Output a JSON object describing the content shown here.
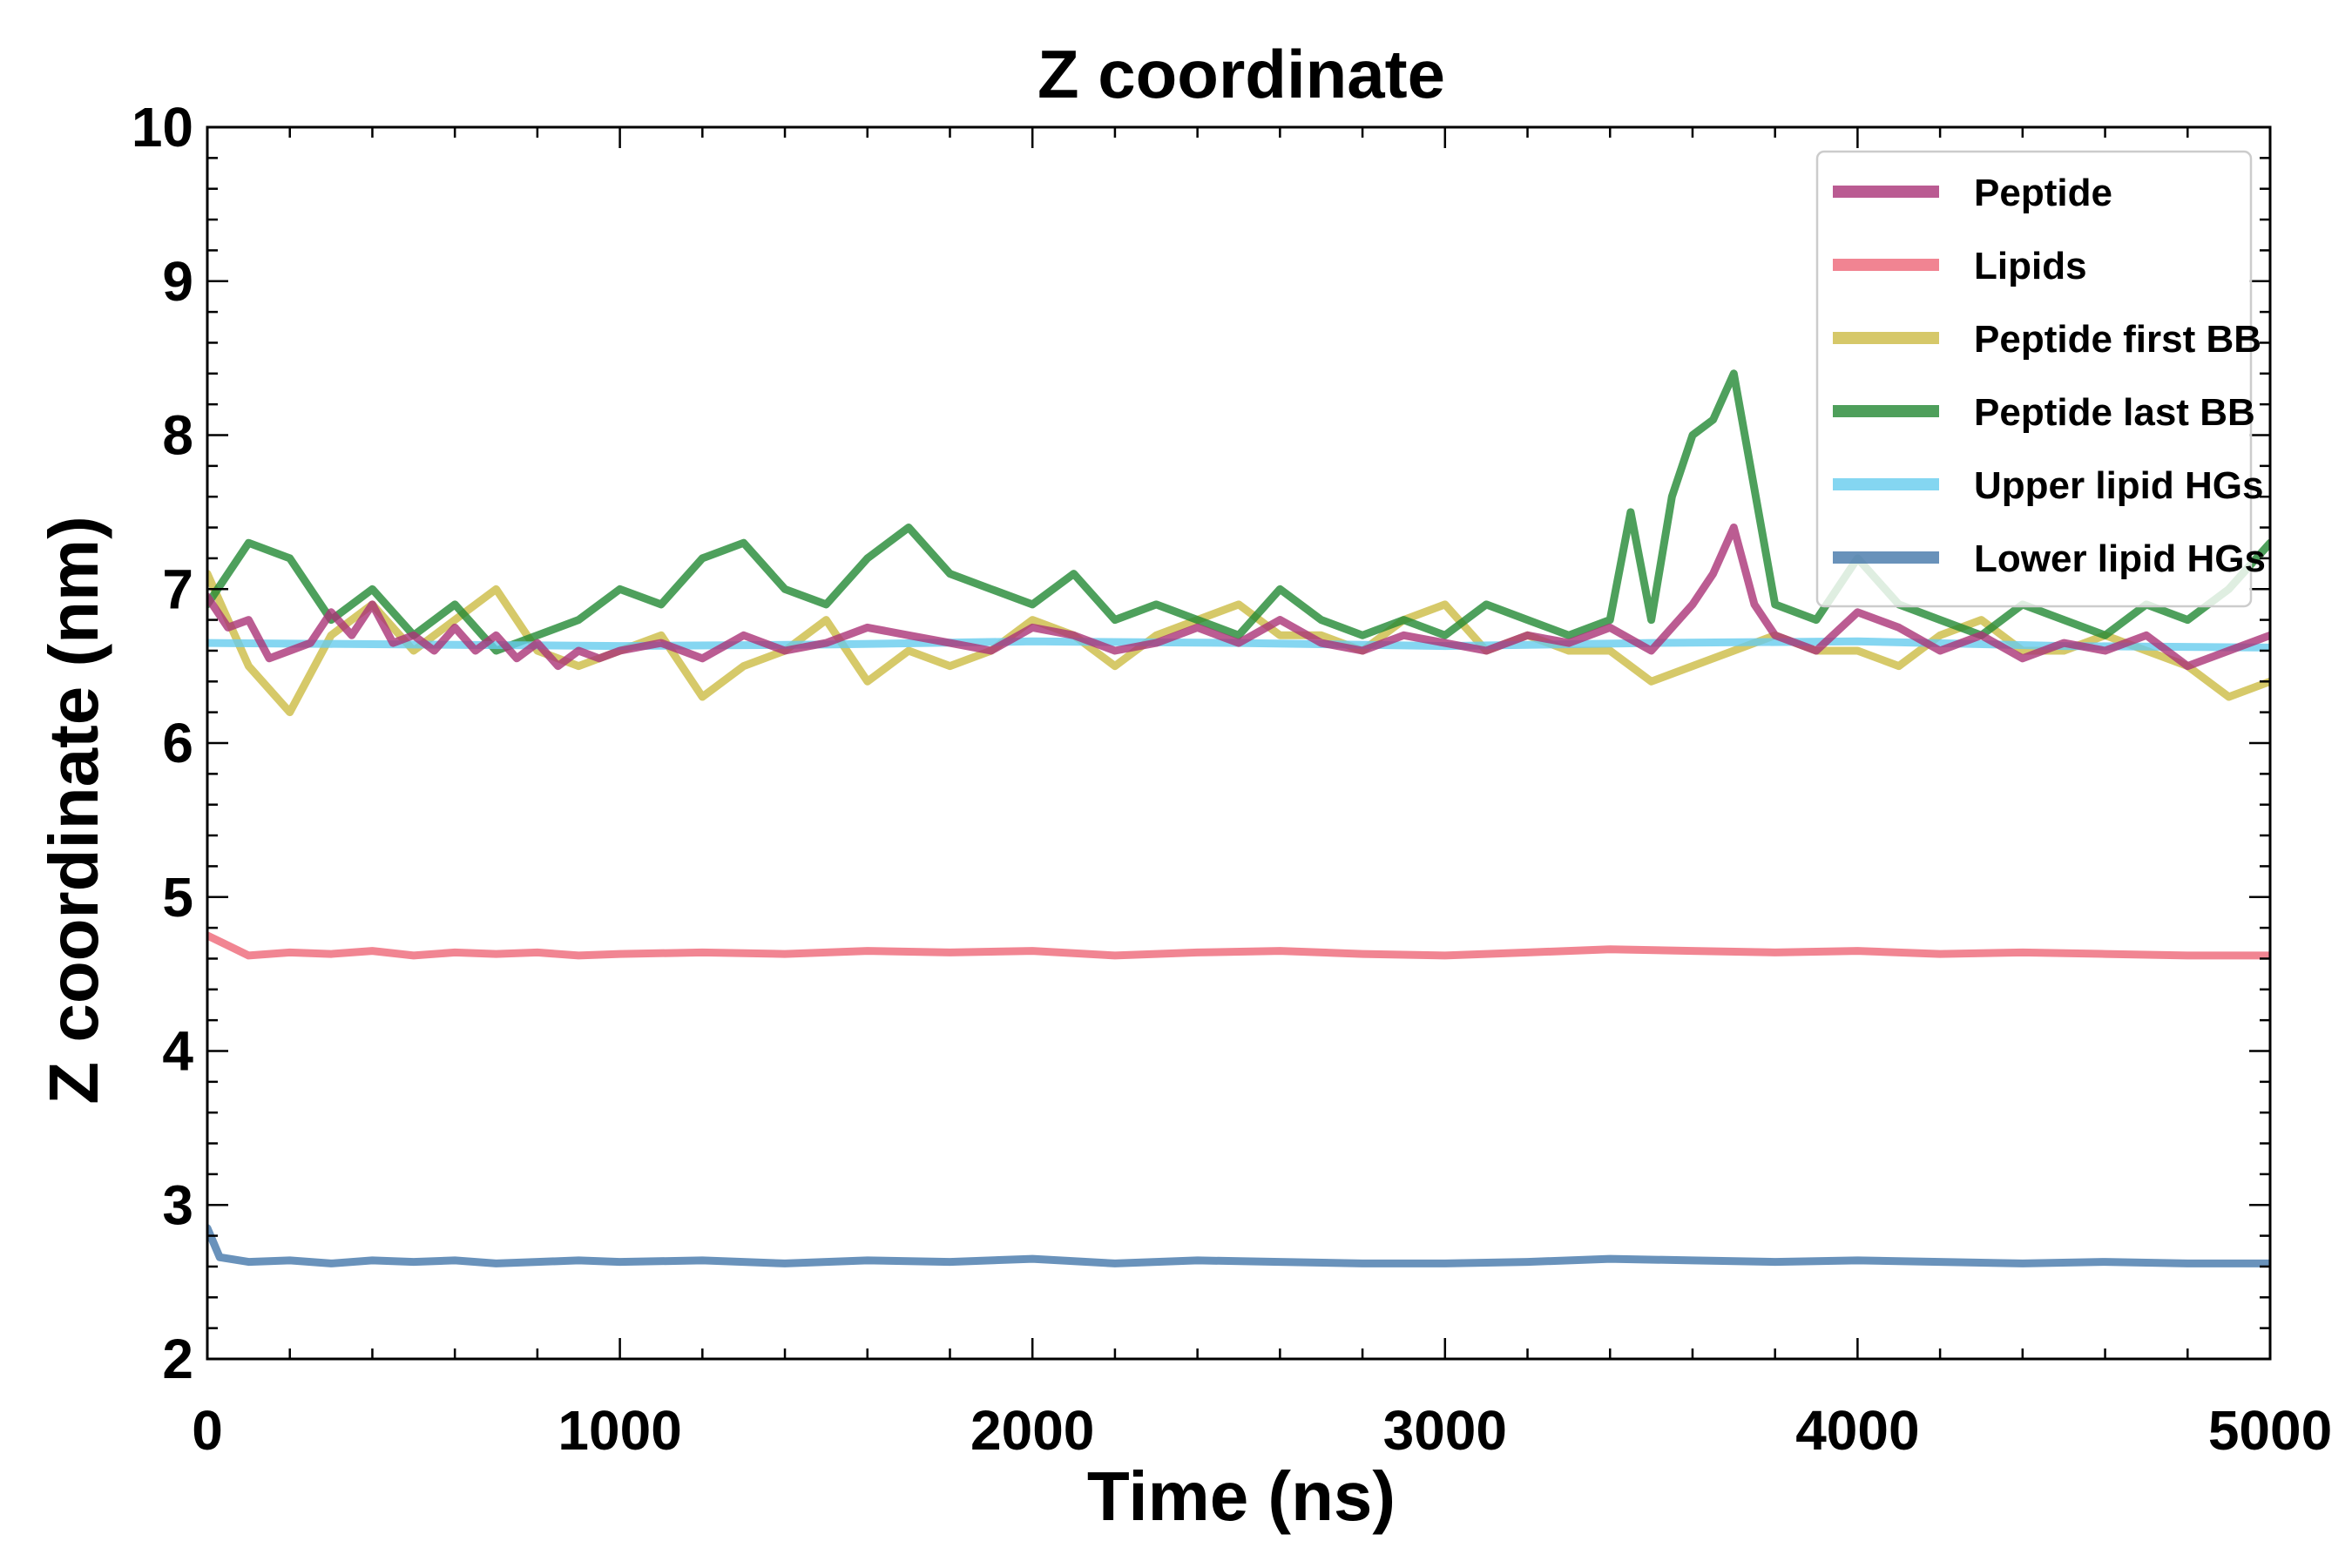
{
  "chart_data": {
    "type": "line",
    "title": "Z coordinate",
    "xlabel": "Time (ns)",
    "ylabel": "Z coordinate (nm)",
    "xlim": [
      0,
      5000
    ],
    "ylim": [
      2,
      10
    ],
    "xticks": [
      "0",
      "1000",
      "2000",
      "3000",
      "4000",
      "5000"
    ],
    "yticks": [
      "2",
      "3",
      "4",
      "5",
      "6",
      "7",
      "8",
      "9",
      "10"
    ],
    "grid": false,
    "legend_position": "top-right",
    "series": [
      {
        "name": "Peptide first BB",
        "color": "#ccbb44",
        "x": [
          0,
          100,
          200,
          300,
          400,
          500,
          600,
          700,
          800,
          900,
          1000,
          1100,
          1200,
          1300,
          1400,
          1500,
          1600,
          1700,
          1800,
          1900,
          2000,
          2100,
          2200,
          2300,
          2400,
          2500,
          2600,
          2700,
          2800,
          2900,
          3000,
          3100,
          3200,
          3300,
          3400,
          3500,
          3600,
          3700,
          3800,
          3900,
          4000,
          4100,
          4200,
          4300,
          4400,
          4500,
          4600,
          4700,
          4800,
          4900,
          5000
        ],
        "values": [
          7.1,
          6.5,
          6.2,
          6.7,
          6.9,
          6.6,
          6.8,
          7.0,
          6.6,
          6.5,
          6.6,
          6.7,
          6.3,
          6.5,
          6.6,
          6.8,
          6.4,
          6.6,
          6.5,
          6.6,
          6.8,
          6.7,
          6.5,
          6.7,
          6.8,
          6.9,
          6.7,
          6.7,
          6.6,
          6.8,
          6.9,
          6.6,
          6.7,
          6.6,
          6.6,
          6.4,
          6.5,
          6.6,
          6.7,
          6.6,
          6.6,
          6.5,
          6.7,
          6.8,
          6.6,
          6.6,
          6.7,
          6.6,
          6.5,
          6.3,
          6.4
        ]
      },
      {
        "name": "Peptide last BB",
        "color": "#228833",
        "x": [
          0,
          100,
          200,
          300,
          400,
          500,
          600,
          700,
          800,
          900,
          1000,
          1100,
          1200,
          1300,
          1400,
          1500,
          1600,
          1700,
          1800,
          1900,
          2000,
          2100,
          2200,
          2300,
          2400,
          2500,
          2600,
          2700,
          2800,
          2900,
          3000,
          3100,
          3200,
          3300,
          3400,
          3450,
          3500,
          3550,
          3600,
          3650,
          3700,
          3800,
          3900,
          4000,
          4100,
          4200,
          4300,
          4400,
          4500,
          4600,
          4700,
          4800,
          4900,
          5000
        ],
        "values": [
          6.9,
          7.3,
          7.2,
          6.8,
          7.0,
          6.7,
          6.9,
          6.6,
          6.7,
          6.8,
          7.0,
          6.9,
          7.2,
          7.3,
          7.0,
          6.9,
          7.2,
          7.4,
          7.1,
          7.0,
          6.9,
          7.1,
          6.8,
          6.9,
          6.8,
          6.7,
          7.0,
          6.8,
          6.7,
          6.8,
          6.7,
          6.9,
          6.8,
          6.7,
          6.8,
          7.5,
          6.8,
          7.6,
          8.0,
          8.1,
          8.4,
          6.9,
          6.8,
          7.2,
          6.9,
          6.8,
          6.7,
          6.9,
          6.8,
          6.7,
          6.9,
          6.8,
          7.0,
          7.3
        ]
      },
      {
        "name": "Upper lipid HGs",
        "color": "#66ccee",
        "x": [
          0,
          500,
          1000,
          1500,
          2000,
          2500,
          3000,
          3500,
          4000,
          4500,
          5000
        ],
        "values": [
          6.65,
          6.64,
          6.63,
          6.64,
          6.66,
          6.65,
          6.63,
          6.65,
          6.66,
          6.63,
          6.62
        ]
      },
      {
        "name": "Lipids",
        "color": "#ee6677",
        "x": [
          0,
          100,
          200,
          300,
          400,
          500,
          600,
          700,
          800,
          900,
          1000,
          1200,
          1400,
          1600,
          1800,
          2000,
          2200,
          2400,
          2600,
          2800,
          3000,
          3200,
          3400,
          3600,
          3800,
          4000,
          4200,
          4400,
          4600,
          4800,
          5000
        ],
        "values": [
          4.75,
          4.62,
          4.64,
          4.63,
          4.65,
          4.62,
          4.64,
          4.63,
          4.64,
          4.62,
          4.63,
          4.64,
          4.63,
          4.65,
          4.64,
          4.65,
          4.62,
          4.64,
          4.65,
          4.63,
          4.62,
          4.64,
          4.66,
          4.65,
          4.64,
          4.65,
          4.63,
          4.64,
          4.63,
          4.62,
          4.62
        ]
      },
      {
        "name": "Lower lipid HGs",
        "color": "#4477aa",
        "x": [
          0,
          30,
          100,
          200,
          300,
          400,
          500,
          600,
          700,
          800,
          900,
          1000,
          1200,
          1400,
          1600,
          1800,
          2000,
          2200,
          2400,
          2600,
          2800,
          3000,
          3200,
          3400,
          3600,
          3800,
          4000,
          4200,
          4400,
          4600,
          4800,
          5000
        ],
        "values": [
          2.85,
          2.66,
          2.63,
          2.64,
          2.62,
          2.64,
          2.63,
          2.64,
          2.62,
          2.63,
          2.64,
          2.63,
          2.64,
          2.62,
          2.64,
          2.63,
          2.65,
          2.62,
          2.64,
          2.63,
          2.62,
          2.62,
          2.63,
          2.65,
          2.64,
          2.63,
          2.64,
          2.63,
          2.62,
          2.63,
          2.62,
          2.62
        ]
      },
      {
        "name": "Peptide",
        "color": "#aa3377",
        "x": [
          0,
          50,
          100,
          150,
          200,
          250,
          300,
          350,
          400,
          450,
          500,
          550,
          600,
          650,
          700,
          750,
          800,
          850,
          900,
          950,
          1000,
          1100,
          1200,
          1300,
          1400,
          1500,
          1600,
          1700,
          1800,
          1900,
          2000,
          2100,
          2200,
          2300,
          2400,
          2500,
          2600,
          2700,
          2800,
          2900,
          3000,
          3100,
          3200,
          3300,
          3400,
          3500,
          3600,
          3650,
          3700,
          3750,
          3800,
          3900,
          4000,
          4100,
          4200,
          4300,
          4400,
          4500,
          4600,
          4700,
          4800,
          4900,
          5000
        ],
        "values": [
          6.95,
          6.75,
          6.8,
          6.55,
          6.6,
          6.65,
          6.85,
          6.7,
          6.9,
          6.65,
          6.7,
          6.6,
          6.75,
          6.6,
          6.7,
          6.55,
          6.65,
          6.5,
          6.6,
          6.55,
          6.6,
          6.65,
          6.55,
          6.7,
          6.6,
          6.65,
          6.75,
          6.7,
          6.65,
          6.6,
          6.75,
          6.7,
          6.6,
          6.65,
          6.75,
          6.65,
          6.8,
          6.65,
          6.6,
          6.7,
          6.65,
          6.6,
          6.7,
          6.65,
          6.75,
          6.6,
          6.9,
          7.1,
          7.4,
          6.9,
          6.7,
          6.6,
          6.85,
          6.75,
          6.6,
          6.7,
          6.55,
          6.65,
          6.6,
          6.7,
          6.5,
          6.6,
          6.7
        ]
      }
    ],
    "legend_order": [
      "Peptide",
      "Lipids",
      "Peptide first BB",
      "Peptide last BB",
      "Upper lipid HGs",
      "Lower lipid HGs"
    ]
  }
}
